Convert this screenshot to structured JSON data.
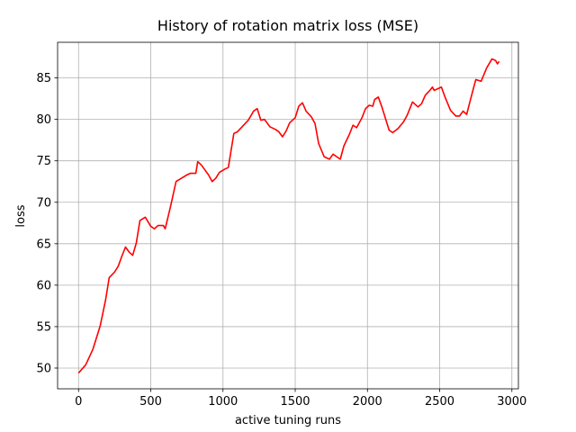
{
  "chart_data": {
    "type": "line",
    "title": "History of rotation matrix loss (MSE)",
    "x_label": "active tuning runs",
    "y_label": "loss",
    "x": [
      0,
      50,
      100,
      150,
      187,
      212,
      250,
      275,
      300,
      325,
      350,
      375,
      400,
      425,
      462,
      500,
      525,
      550,
      587,
      600,
      637,
      675,
      712,
      750,
      775,
      812,
      825,
      850,
      875,
      900,
      925,
      950,
      975,
      1012,
      1037,
      1075,
      1100,
      1137,
      1175,
      1212,
      1237,
      1262,
      1287,
      1325,
      1362,
      1387,
      1412,
      1437,
      1462,
      1500,
      1525,
      1550,
      1575,
      1612,
      1637,
      1662,
      1700,
      1737,
      1762,
      1787,
      1812,
      1837,
      1875,
      1900,
      1925,
      1962,
      1987,
      2012,
      2037,
      2050,
      2075,
      2100,
      2125,
      2150,
      2175,
      2212,
      2250,
      2275,
      2312,
      2350,
      2375,
      2400,
      2437,
      2450,
      2462,
      2512,
      2537,
      2575,
      2612,
      2637,
      2662,
      2687,
      2712,
      2750,
      2787,
      2825,
      2862,
      2887,
      2900,
      2912
    ],
    "series": [
      {
        "name": "loss",
        "color": "#ff0000",
        "values": [
          49.4,
          50.4,
          52.3,
          55.1,
          58.2,
          60.9,
          61.6,
          62.3,
          63.5,
          64.6,
          64.0,
          63.6,
          65.1,
          67.8,
          68.2,
          67.1,
          66.8,
          67.2,
          67.2,
          66.8,
          69.5,
          72.5,
          72.9,
          73.3,
          73.5,
          73.5,
          74.9,
          74.5,
          73.9,
          73.3,
          72.5,
          72.9,
          73.6,
          74.0,
          74.2,
          78.3,
          78.5,
          79.2,
          79.9,
          81.0,
          81.3,
          79.9,
          80.0,
          79.1,
          78.8,
          78.5,
          77.9,
          78.6,
          79.6,
          80.2,
          81.6,
          82.0,
          81.0,
          80.3,
          79.5,
          77.1,
          75.5,
          75.2,
          75.8,
          75.5,
          75.2,
          76.8,
          78.2,
          79.3,
          79.0,
          80.2,
          81.3,
          81.7,
          81.6,
          82.4,
          82.7,
          81.5,
          80.1,
          78.7,
          78.4,
          78.9,
          79.7,
          80.5,
          82.1,
          81.5,
          81.9,
          82.9,
          83.6,
          83.9,
          83.5,
          83.9,
          82.7,
          81.1,
          80.4,
          80.4,
          81.0,
          80.6,
          82.3,
          84.8,
          84.6,
          86.2,
          87.3,
          87.1,
          86.7,
          87.0
        ]
      }
    ],
    "xlim": [
      -145,
      3045
    ],
    "ylim": [
      47.5,
      89.3
    ],
    "xticks": [
      0,
      500,
      1000,
      1500,
      2000,
      2500,
      3000
    ],
    "yticks": [
      50,
      55,
      60,
      65,
      70,
      75,
      80,
      85
    ],
    "grid": true
  }
}
